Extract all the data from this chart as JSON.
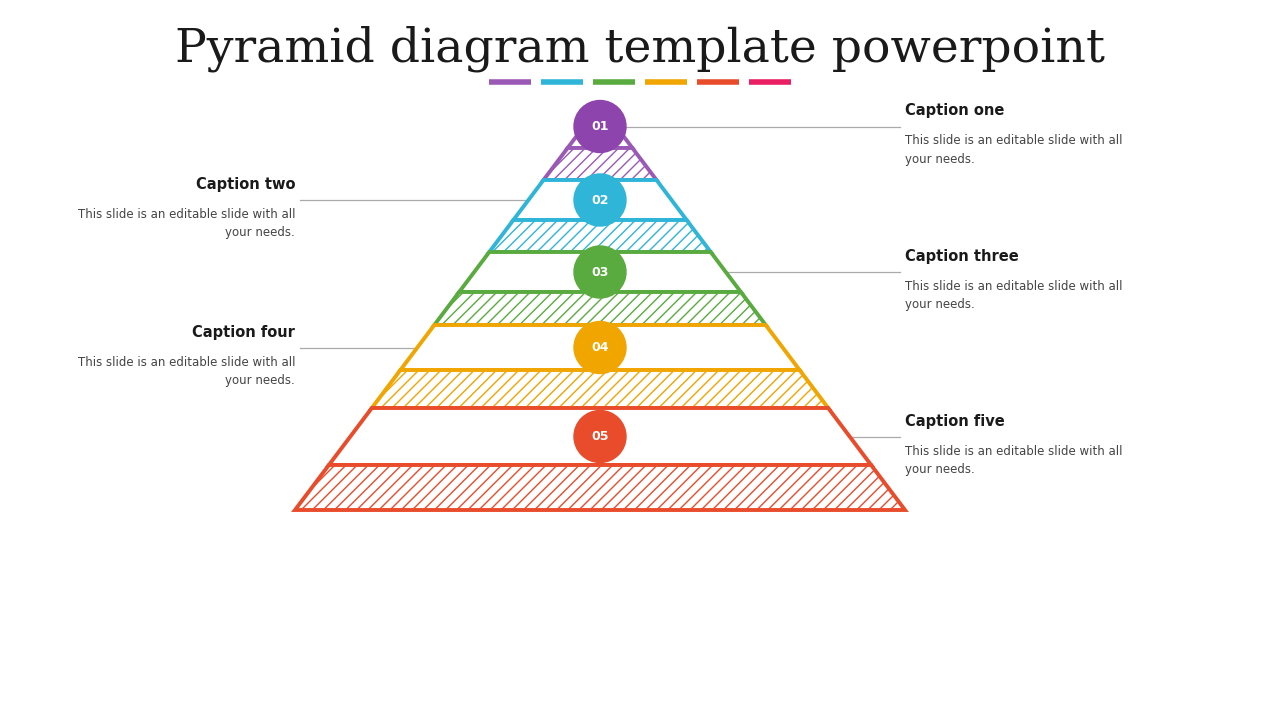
{
  "title": "Pyramid diagram template powerpoint",
  "title_fontsize": 34,
  "background_color": "#ffffff",
  "layers": [
    {
      "level": 1,
      "color": "#9b59b6",
      "circle_color": "#8e44ad",
      "label": "01",
      "caption_title": "Caption one",
      "caption_text": "This slide is an editable slide with all\nyour needs.",
      "caption_side": "right"
    },
    {
      "level": 2,
      "color": "#2eb5d8",
      "circle_color": "#2eb5d8",
      "label": "02",
      "caption_title": "Caption two",
      "caption_text": "This slide is an editable slide with all\nyour needs.",
      "caption_side": "left"
    },
    {
      "level": 3,
      "color": "#5aab3f",
      "circle_color": "#5aab3f",
      "label": "03",
      "caption_title": "Caption three",
      "caption_text": "This slide is an editable slide with all\nyour needs.",
      "caption_side": "right"
    },
    {
      "level": 4,
      "color": "#f0a500",
      "circle_color": "#f0a500",
      "label": "04",
      "caption_title": "Caption four",
      "caption_text": "This slide is an editable slide with all\nyour needs.",
      "caption_side": "left"
    },
    {
      "level": 5,
      "color": "#e84c2b",
      "circle_color": "#e84c2b",
      "label": "05",
      "caption_title": "Caption five",
      "caption_text": "This slide is an editable slide with all\nyour needs.",
      "caption_side": "right"
    }
  ],
  "underline_colors": [
    "#9b59b6",
    "#2eb5d8",
    "#5aab3f",
    "#f0a500",
    "#e84c2b",
    "#e91e63"
  ]
}
